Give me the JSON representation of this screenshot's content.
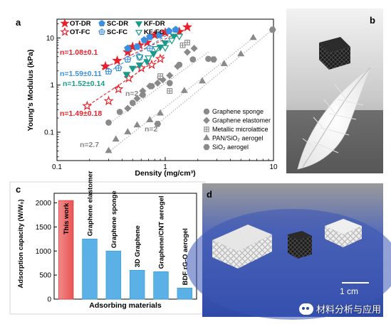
{
  "panel_a": {
    "letter": "a",
    "chart_data": {
      "type": "scatter",
      "scale": "log-log",
      "xlabel": "Density (mg/cm³)",
      "ylabel": "Young's Modulus (kPa)",
      "xlim": [
        0.1,
        10
      ],
      "ylim": [
        0.025,
        25
      ],
      "x_ticks": [
        "0.1",
        "1",
        "10"
      ],
      "y_ticks": [
        "0.1",
        "1",
        "10"
      ],
      "legend_this_work": [
        {
          "label": "OT-DR",
          "marker": "star",
          "fill": true,
          "color": "#e8202a"
        },
        {
          "label": "OT-FC",
          "marker": "star",
          "fill": false,
          "color": "#e8202a"
        },
        {
          "label": "SC-DR",
          "marker": "pentagon",
          "fill": true,
          "color": "#3a8fe0"
        },
        {
          "label": "SC-FC",
          "marker": "pentagon-cross",
          "fill": false,
          "color": "#3a8fe0"
        },
        {
          "label": "KF-DR",
          "marker": "triangle-down",
          "fill": true,
          "color": "#1a9a8a"
        },
        {
          "label": "KF-FC",
          "marker": "triangle-down",
          "fill": false,
          "color": "#1a9a8a"
        }
      ],
      "legend_literature": [
        {
          "label": "Graphene sponge",
          "marker": "circle"
        },
        {
          "label": "Graphene elastomer",
          "marker": "diamond"
        },
        {
          "label": "Metallic microlattice",
          "marker": "square-cross"
        },
        {
          "label": "PAN/SiO₂ aerogel",
          "marker": "triangle-up"
        },
        {
          "label": "SiO₂ aerogel",
          "marker": "hexagon"
        }
      ],
      "fit_labels": [
        {
          "text": "n=1.08±0.1",
          "color": "#e8202a"
        },
        {
          "text": "n=1.59±0.11",
          "color": "#3a8fe0"
        },
        {
          "text": "n=1.52±0.14",
          "color": "#1a9a8a"
        },
        {
          "text": "n=1.49±0.18",
          "color": "#e8202a"
        },
        {
          "text": "n=2.2",
          "color": "#888888"
        },
        {
          "text": "n=2",
          "color": "#888888"
        },
        {
          "text": "n=2.7",
          "color": "#888888"
        }
      ],
      "series": [
        {
          "name": "OT-DR",
          "marker": "star",
          "fill": true,
          "color": "#e8202a",
          "x": [
            0.28,
            0.36,
            0.45,
            0.5,
            0.58,
            0.68,
            0.8,
            1.0,
            1.35,
            1.6
          ],
          "y": [
            2.5,
            3.3,
            5.0,
            6.5,
            7.0,
            8.0,
            11.5,
            13.0,
            13.5,
            17.0
          ]
        },
        {
          "name": "OT-FC",
          "marker": "star",
          "fill": false,
          "color": "#e8202a",
          "x": [
            0.19,
            0.3,
            0.37,
            0.46,
            0.6,
            0.75,
            0.9
          ],
          "y": [
            0.36,
            0.46,
            0.82,
            1.4,
            2.3,
            2.7,
            3.6
          ]
        },
        {
          "name": "SC-DR",
          "marker": "pentagon",
          "fill": true,
          "color": "#3a8fe0",
          "x": [
            0.45,
            0.55,
            0.64,
            0.72,
            0.88,
            1.08,
            1.25
          ],
          "y": [
            6.0,
            6.5,
            9.0,
            10.5,
            11.5,
            14.0,
            15.0
          ]
        },
        {
          "name": "SC-FC",
          "marker": "pentagon-cross",
          "fill": false,
          "color": "#3a8fe0",
          "x": [
            0.3,
            0.37,
            0.45,
            0.58,
            0.72
          ],
          "y": [
            1.95,
            2.3,
            3.5,
            3.9,
            6.0
          ]
        },
        {
          "name": "KF-DR",
          "marker": "triangle-down",
          "fill": true,
          "color": "#1a9a8a",
          "x": [
            0.44,
            0.5,
            0.58,
            0.68,
            0.78,
            0.9,
            1.0,
            1.2
          ],
          "y": [
            1.7,
            2.3,
            2.7,
            3.2,
            4.7,
            6.5,
            8.0,
            11.0
          ]
        },
        {
          "name": "KF-FC",
          "marker": "triangle-down",
          "fill": false,
          "color": "#1a9a8a",
          "x": [
            0.58,
            0.7,
            0.82,
            1.0,
            1.15,
            1.35
          ],
          "y": [
            4.0,
            3.8,
            6.0,
            6.3,
            9.0,
            11.0
          ]
        },
        {
          "name": "Graphene sponge",
          "marker": "circle",
          "fill": true,
          "color": "#8a8a8a",
          "x": [
            0.3,
            0.38,
            0.5,
            0.62,
            0.75,
            0.9,
            1.1,
            1.35,
            1.8,
            2.5
          ],
          "y": [
            0.16,
            0.27,
            0.42,
            0.62,
            0.95,
            1.45,
            1.1,
            2.7,
            3.5,
            3.6
          ]
        },
        {
          "name": "Graphene elastomer",
          "marker": "diamond",
          "fill": true,
          "color": "#8a8a8a",
          "x": [
            0.45,
            0.55,
            0.62,
            0.72,
            0.85,
            0.95,
            1.1,
            1.3,
            1.6,
            1.85
          ],
          "y": [
            0.32,
            0.52,
            0.75,
            0.95,
            1.1,
            1.3,
            1.6,
            2.5,
            5.0,
            6.0
          ]
        },
        {
          "name": "Metallic microlattice",
          "marker": "square-cross",
          "fill": false,
          "color": "#8a8a8a",
          "x": [
            0.9,
            1.1,
            1.45,
            1.6
          ],
          "y": [
            1.55,
            0.75,
            7.0,
            8.0
          ]
        },
        {
          "name": "PAN/SiO₂ aerogel",
          "marker": "triangle-up",
          "fill": true,
          "color": "#8a8a8a",
          "x": [
            0.3,
            0.35,
            0.45,
            0.55,
            0.72,
            0.9,
            1.5,
            2.2,
            3.5,
            5.0,
            6.5
          ],
          "y": [
            0.04,
            0.07,
            0.1,
            0.14,
            0.18,
            0.25,
            0.75,
            1.2,
            2.8,
            4.5,
            10.0
          ]
        },
        {
          "name": "SiO₂ aerogel",
          "marker": "hexagon",
          "fill": true,
          "color": "#8a8a8a",
          "x": [
            0.85,
            2.8,
            9.8
          ],
          "y": [
            0.15,
            3.5,
            15.0
          ]
        }
      ],
      "fit_lines": [
        {
          "color": "#e8202a",
          "from": [
            0.26,
            2.2
          ],
          "to": [
            1.7,
            17.0
          ]
        },
        {
          "color": "#e8202a",
          "from": [
            0.18,
            0.33
          ],
          "to": [
            1.0,
            4.5
          ]
        },
        {
          "color": "#3a8fe0",
          "from": [
            0.28,
            1.7
          ],
          "to": [
            1.3,
            16.0
          ]
        },
        {
          "color": "#1a9a8a",
          "from": [
            0.42,
            1.5
          ],
          "to": [
            1.35,
            12.0
          ]
        },
        {
          "color": "#aaaaaa",
          "from": [
            0.3,
            0.15
          ],
          "to": [
            2.5,
            5.0
          ]
        },
        {
          "color": "#aaaaaa",
          "from": [
            0.85,
            0.15
          ],
          "to": [
            9.8,
            15.0
          ]
        },
        {
          "color": "#aaaaaa",
          "from": [
            0.3,
            0.038
          ],
          "to": [
            6.5,
            10.0
          ]
        }
      ]
    }
  },
  "panel_b": {
    "letter": "b"
  },
  "panel_c": {
    "letter": "c",
    "chart_data": {
      "type": "bar",
      "xlabel": "Adsorbing materials",
      "ylabel": "Adsorption capacity (W/W₀)",
      "ylim": [
        0,
        2200
      ],
      "y_ticks": [
        "0",
        "500",
        "1000",
        "1500",
        "2000"
      ],
      "categories": [
        "This work",
        "Graphene elastomer",
        "Graphene sponge",
        "3D Graphene",
        "Graphene/CNT aerogel",
        "BDF rG-O aerogel"
      ],
      "values": [
        2050,
        1250,
        1000,
        600,
        570,
        230
      ],
      "colors": [
        "#ef6b6b",
        "#5bb1e6",
        "#5bb1e6",
        "#5bb1e6",
        "#5bb1e6",
        "#5bb1e6"
      ]
    }
  },
  "panel_d": {
    "letter": "d",
    "scale_text": "1 cm"
  },
  "watermark": {
    "text": "材料分析与应用",
    "icon": "wechat-icon"
  }
}
